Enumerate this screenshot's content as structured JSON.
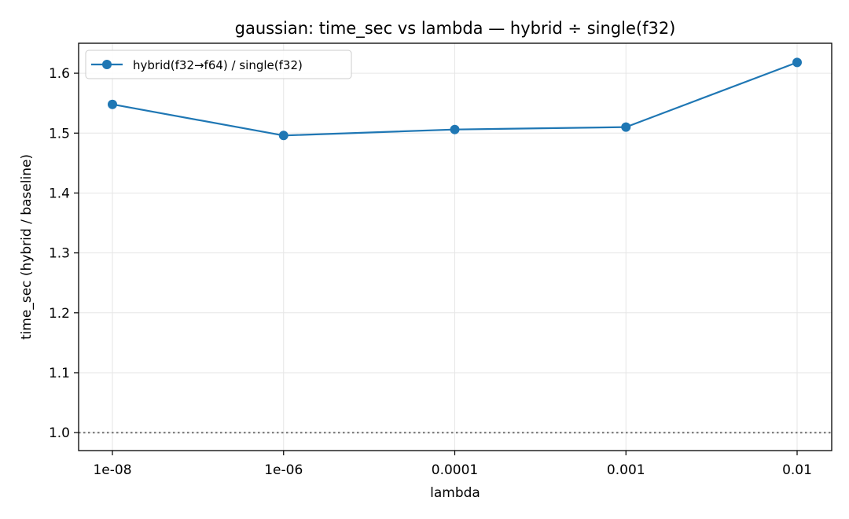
{
  "chart_data": {
    "type": "line",
    "title": "gaussian: time_sec vs lambda — hybrid ÷ single(f32)",
    "xlabel": "lambda",
    "ylabel": "time_sec (hybrid / baseline)",
    "categories": [
      "1e-08",
      "1e-06",
      "0.0001",
      "0.001",
      "0.01"
    ],
    "series": [
      {
        "name": "hybrid(f32→f64) / single(f32)",
        "values": [
          1.548,
          1.496,
          1.506,
          1.51,
          1.618
        ],
        "color": "#1f77b4",
        "marker": "circle"
      }
    ],
    "yticks": [
      "1.0",
      "1.1",
      "1.2",
      "1.3",
      "1.4",
      "1.5",
      "1.6"
    ],
    "ylim": [
      0.97,
      1.65
    ],
    "reference_line": {
      "y": 1.0,
      "style": "dotted",
      "color": "#808080"
    },
    "grid": true,
    "legend_position": "top-left"
  }
}
